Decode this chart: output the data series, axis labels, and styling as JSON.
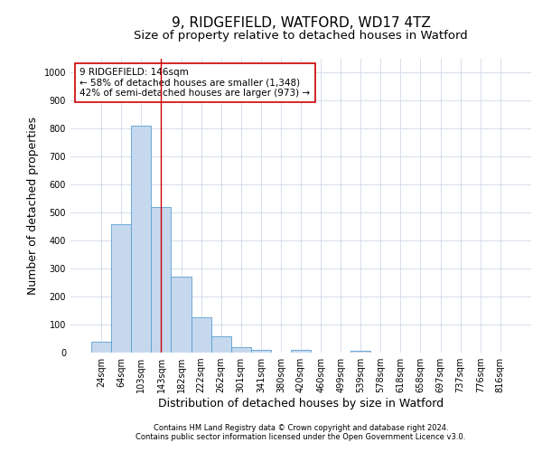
{
  "title1": "9, RIDGEFIELD, WATFORD, WD17 4TZ",
  "title2": "Size of property relative to detached houses in Watford",
  "xlabel": "Distribution of detached houses by size in Watford",
  "ylabel": "Number of detached properties",
  "categories": [
    "24sqm",
    "64sqm",
    "103sqm",
    "143sqm",
    "182sqm",
    "222sqm",
    "262sqm",
    "301sqm",
    "341sqm",
    "380sqm",
    "420sqm",
    "460sqm",
    "499sqm",
    "539sqm",
    "578sqm",
    "618sqm",
    "658sqm",
    "697sqm",
    "737sqm",
    "776sqm",
    "816sqm"
  ],
  "values": [
    40,
    460,
    810,
    520,
    270,
    125,
    57,
    20,
    10,
    0,
    10,
    0,
    0,
    8,
    0,
    0,
    0,
    0,
    0,
    0,
    0
  ],
  "bar_color": "#c5d8ed",
  "bar_edge_color": "#5a9fd4",
  "vline_x": 3,
  "vline_color": "#cc0000",
  "annotation_line1": "9 RIDGEFIELD: 146sqm",
  "annotation_line2": "← 58% of detached houses are smaller (1,348)",
  "annotation_line3": "42% of semi-detached houses are larger (973) →",
  "annotation_box_color": "#ffffff",
  "annotation_box_edge": "#cc0000",
  "ylim": [
    0,
    1050
  ],
  "yticks": [
    0,
    100,
    200,
    300,
    400,
    500,
    600,
    700,
    800,
    900,
    1000
  ],
  "footer1": "Contains HM Land Registry data © Crown copyright and database right 2024.",
  "footer2": "Contains public sector information licensed under the Open Government Licence v3.0.",
  "bg_color": "#ffffff",
  "grid_color": "#d0d8e8",
  "title1_fontsize": 11,
  "title2_fontsize": 9.5,
  "tick_fontsize": 7,
  "label_fontsize": 9,
  "annotation_fontsize": 7.5,
  "footer_fontsize": 6
}
